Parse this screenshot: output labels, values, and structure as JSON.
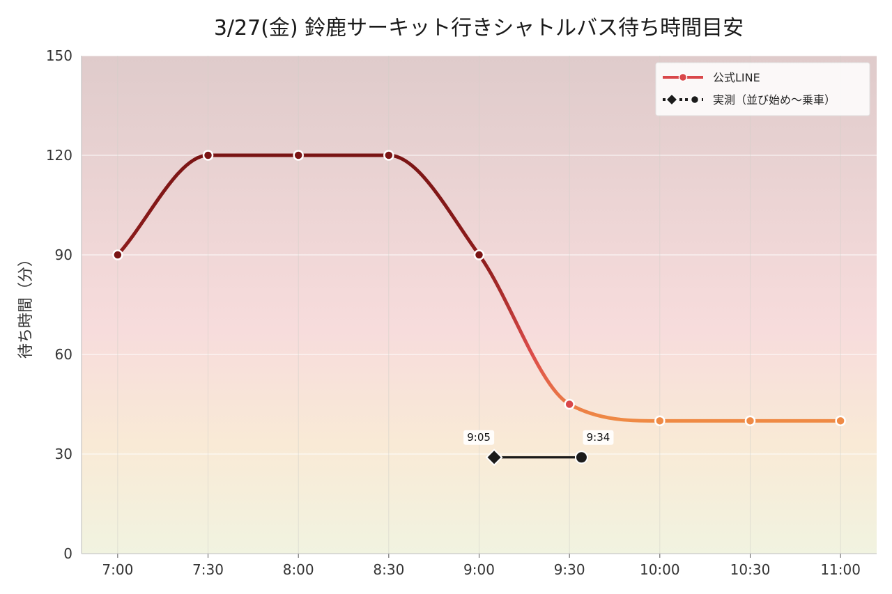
{
  "chart_data": {
    "type": "line",
    "title": "3/27(金) 鈴鹿サーキット行きシャトルバス待ち時間目安",
    "xlabel": "",
    "ylabel": "待ち時間（分）",
    "xlim": [
      "6:48",
      "11:12"
    ],
    "ylim": [
      0,
      150
    ],
    "x_ticks": [
      "7:00",
      "7:30",
      "8:00",
      "8:30",
      "9:00",
      "9:30",
      "10:00",
      "10:30",
      "11:00"
    ],
    "y_ticks": [
      0,
      30,
      60,
      90,
      120,
      150
    ],
    "grid": true,
    "legend": "top-right",
    "colors": {
      "line_top": "#7a1414",
      "line_mid": "#d9474a",
      "line_low": "#ef8a45",
      "actual": "#1b1b1b",
      "bg_top": "#dfcbcb",
      "bg_mid": "#f7dcdc",
      "bg_low": "#f2f4e0"
    },
    "series": [
      {
        "name": "公式LINE",
        "x": [
          "7:00",
          "7:30",
          "8:00",
          "8:30",
          "9:00",
          "9:30",
          "10:00",
          "10:30",
          "11:00"
        ],
        "values": [
          90,
          120,
          120,
          120,
          90,
          45,
          40,
          40,
          40
        ]
      },
      {
        "name": "実測（並び始め〜乗車）",
        "x": [
          "9:05",
          "9:34"
        ],
        "values": [
          29,
          29
        ],
        "labels": [
          "9:05",
          "9:34"
        ]
      }
    ]
  }
}
